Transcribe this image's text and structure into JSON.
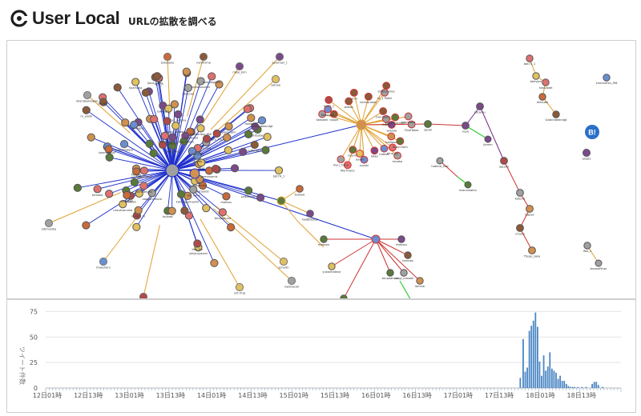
{
  "header": {
    "logo_text": "User Local",
    "title": "URLの拡散を調べる"
  },
  "graph": {
    "hubs": [
      {
        "name": "hub-main",
        "color": "#2a3bc4"
      },
      {
        "name": "hub-center",
        "color": "#e0a030"
      },
      {
        "name": "hub-right",
        "color": "#cc3333"
      },
      {
        "name": "hub-small",
        "color": "#cc3333"
      }
    ],
    "labels": [
      "bot74_1",
      "takivjeri",
      "hiroviolet",
      "ehtsube",
      "Gaskinbkendgt",
      "kinmaritsn_f96",
      "lfoo_n",
      "lsoonofiinor",
      "alzpts",
      "masoon",
      "yukaimakeur",
      "tomotonabin",
      "mokusu",
      "tomoko",
      "usagi_masaki",
      "lamxia",
      "tenpoatuve",
      "saruga",
      "tsukaw",
      "Gadjfotosyi",
      "kuk_hooma",
      "furo_hiro",
      "Sanfuujim",
      "mdogmo",
      "ykkytuyaomi",
      "amegiar",
      "jlone_hiroy",
      "satueldo",
      "m_yoshi",
      "tisa_kin",
      "nazukuanima",
      "twoxtagrem",
      "fumiqa",
      "kataragumaerik",
      "odakajei",
      "yamadeyan",
      "obyscan",
      "ooopsnomore",
      "futabeys",
      "sweetaa",
      "pomonomis",
      "Syamaka",
      "hdfimaba",
      "masa_k",
      "pakuhrshi",
      "Laur_tano",
      "skiff",
      "ssagavikir",
      "rokupadwen",
      "aki_nos",
      "kurofu_m",
      "dat_nana",
      "tatukabu",
      "nemfizme",
      "rinko_kim",
      "aeroman_t",
      "satusa",
      "Brandoekiopier",
      "stbmusika",
      "masaharu",
      "mamiye",
      "snt-ring",
      "sonydn",
      "Genbacoli",
      "FinalTotes",
      "MorTriano",
      "lokes",
      "stijtnoumier",
      "meu_frand",
      "kotomaka",
      "naojiri",
      "takaomi",
      "tanaka",
      "nozmu",
      "Kaneshrimem",
      "suzuki",
      "wisoda",
      "ayaki",
      "etuo_ay",
      "hamaso",
      "Suan-Hom",
      "wakaz",
      "r2_1 Pokhi",
      "katesu",
      "Ouruhkiko",
      "Shikaban",
      "ayaki_s",
      "Olowi",
      "kannanooni",
      "emil",
      "sjzuki",
      "reya",
      "kotarou",
      "agushi",
      "kotorin",
      "tojeya",
      "chozio",
      "Ttepe_saka",
      "jlamm",
      "hatena_hub",
      "brancetaiho"
    ],
    "bookmark_badge": "B!"
  },
  "chart_data": {
    "type": "bar",
    "title": "",
    "xlabel": "",
    "ylabel": "ツイート件数",
    "ylim": [
      0,
      80
    ],
    "yticks": [
      0,
      25,
      50,
      75
    ],
    "xticks": [
      "12日01時",
      "12日13時",
      "13日01時",
      "13日13時",
      "14日01時",
      "14日13時",
      "15日01時",
      "15日13時",
      "16日01時",
      "16日13時",
      "17日01時",
      "17日13時",
      "18日01時",
      "18日13時"
    ],
    "bar_color": "#4a86c4",
    "x_start": 0,
    "x_step": 1,
    "values": [
      0,
      0,
      0,
      0,
      0,
      0,
      0,
      0,
      0,
      0,
      0,
      0,
      0,
      0,
      0,
      0,
      0,
      0,
      0,
      0,
      0,
      0,
      0,
      0,
      0,
      0,
      0,
      0,
      0,
      0,
      0,
      0,
      0,
      0,
      0,
      0,
      0,
      0,
      0,
      0,
      0,
      0,
      0,
      0,
      0,
      0,
      0,
      0,
      0,
      0,
      0,
      0,
      0,
      0,
      0,
      0,
      0,
      0,
      0,
      0,
      0,
      0,
      0,
      0,
      0,
      0,
      0,
      0,
      0,
      0,
      0,
      0,
      0,
      0,
      0,
      0,
      0,
      0,
      0,
      0,
      0,
      0,
      0,
      0,
      0,
      0,
      0,
      0,
      0,
      0,
      0,
      0,
      0,
      0,
      0,
      0,
      0,
      0,
      0,
      0,
      0,
      0,
      0,
      0,
      0,
      0,
      0,
      0,
      0,
      0,
      0,
      0,
      0,
      0,
      0,
      0,
      0,
      0,
      0,
      0,
      0,
      0,
      0,
      0,
      0,
      0,
      0,
      0,
      0,
      0,
      0,
      0,
      0,
      0,
      0,
      0,
      0,
      0,
      0,
      0,
      0,
      0,
      0,
      0,
      0,
      0,
      0,
      0,
      0,
      0,
      0,
      0,
      0,
      0,
      0,
      0,
      0,
      0,
      0,
      0,
      0,
      0,
      0,
      0,
      0,
      0,
      0,
      0,
      0,
      0,
      0,
      0,
      0,
      0,
      0,
      0,
      0,
      0,
      0,
      0,
      0,
      0,
      0,
      0,
      0,
      0,
      0,
      0,
      0,
      0,
      0,
      0,
      0,
      0,
      0,
      0,
      0,
      0,
      0,
      0,
      0,
      0,
      0,
      0,
      0,
      0,
      0,
      0,
      0,
      0,
      0,
      0,
      0,
      0,
      0,
      0,
      0,
      0,
      0,
      0,
      0,
      0,
      0,
      0,
      0,
      0,
      0,
      0,
      0,
      0,
      0,
      0,
      0,
      0,
      0,
      0,
      0,
      0,
      0,
      0,
      0,
      0,
      0,
      0,
      0,
      0,
      0,
      0,
      0,
      0,
      0,
      0,
      0,
      0,
      0,
      0,
      0,
      0,
      0,
      0,
      0,
      0,
      0,
      0,
      0,
      0,
      0,
      0,
      0,
      0,
      0,
      0,
      0,
      0,
      0,
      0,
      0,
      0,
      0,
      0,
      0,
      0,
      0,
      0,
      0,
      0,
      0,
      0,
      0,
      0,
      0,
      0,
      0,
      0,
      0,
      0,
      0,
      0,
      0,
      0,
      0,
      0,
      0,
      0,
      0,
      0,
      0,
      0,
      0,
      0,
      0,
      0,
      0,
      0,
      0,
      0,
      0,
      0,
      0,
      0,
      0,
      0,
      0,
      0,
      0,
      0,
      0,
      0,
      0,
      0,
      0,
      0,
      0,
      0,
      0,
      0,
      0,
      0,
      0,
      0,
      0,
      0,
      0,
      0,
      0,
      0,
      0,
      0,
      0,
      0,
      0,
      0,
      0,
      0,
      0,
      0,
      0,
      0,
      0,
      0,
      0,
      0,
      0,
      0,
      0,
      0,
      0,
      0,
      0,
      0,
      0,
      0,
      0,
      0,
      0,
      0,
      0,
      0,
      0,
      0,
      0,
      0,
      0,
      0,
      0,
      0,
      0,
      0,
      0,
      0,
      0,
      0,
      0,
      0,
      0,
      0,
      0,
      0,
      0,
      0,
      0,
      0,
      0,
      0,
      0,
      0,
      0,
      0,
      0,
      0,
      0,
      0,
      0,
      0,
      0,
      0,
      0,
      0,
      0,
      0,
      0,
      0,
      0,
      0,
      0,
      0,
      0,
      0,
      0,
      0,
      0,
      0,
      0,
      0,
      0,
      0,
      0,
      0,
      0,
      0,
      0,
      0,
      0,
      0,
      0,
      0,
      0,
      0,
      0,
      0,
      0,
      0,
      0,
      0,
      0,
      0,
      0,
      0,
      0,
      0,
      0,
      0,
      0,
      0,
      0,
      0,
      0,
      0,
      0,
      0,
      0,
      0,
      0,
      0,
      0,
      0,
      0,
      0,
      0,
      0,
      0,
      0,
      0,
      0,
      0,
      0,
      0,
      0,
      0,
      0,
      0,
      0,
      0,
      0,
      0,
      0,
      0,
      0,
      0,
      0,
      0,
      0,
      0,
      0,
      0,
      0,
      0,
      0,
      0,
      0,
      0,
      0,
      0,
      0,
      0,
      0,
      0,
      0,
      0,
      0,
      0,
      0,
      0,
      0,
      0,
      0,
      0,
      0,
      0,
      0,
      0,
      0,
      0,
      0,
      0,
      0,
      0,
      0,
      0,
      0,
      0,
      0,
      0,
      0,
      0,
      0,
      0,
      0,
      0,
      0,
      0,
      0,
      0,
      0,
      0,
      0,
      0,
      0,
      0,
      0,
      0,
      0,
      0,
      0,
      0,
      0,
      0,
      0,
      0,
      0,
      0,
      0,
      0,
      0,
      0,
      0,
      0,
      0,
      0,
      0,
      0,
      0,
      0,
      0,
      0,
      0,
      0,
      0,
      0,
      0,
      0,
      0,
      0,
      0,
      0,
      0,
      0,
      0,
      0,
      0,
      0,
      0,
      0,
      0,
      0,
      0,
      0,
      0,
      0,
      0,
      0,
      0,
      0,
      0,
      0,
      0,
      0,
      0,
      0,
      0,
      0,
      0,
      0,
      0,
      0,
      0,
      0,
      0,
      0,
      0,
      0,
      0,
      0,
      0,
      0,
      0,
      0,
      0,
      0,
      0,
      0,
      0,
      0,
      0,
      0,
      0,
      0,
      0,
      0,
      0,
      0,
      0,
      0,
      0,
      0,
      0,
      0,
      0,
      0,
      0,
      0,
      0,
      0,
      0,
      0,
      0,
      0,
      0,
      0,
      0,
      0,
      0,
      0,
      0,
      0,
      0,
      0,
      0,
      0,
      0,
      0,
      0,
      0,
      0,
      0,
      0,
      0,
      0,
      0,
      0,
      0,
      0,
      0,
      0,
      0,
      0,
      0,
      0,
      0,
      0,
      0,
      0,
      0,
      0,
      0,
      0,
      0,
      0,
      0,
      0,
      0,
      0,
      0,
      0,
      0,
      0,
      0,
      0,
      0,
      0,
      0,
      0,
      0,
      0,
      0,
      0,
      0,
      0,
      0,
      0,
      0,
      0,
      0,
      0,
      0,
      0,
      0,
      0,
      0,
      0,
      0,
      0,
      0,
      0,
      0,
      0,
      0,
      0,
      0,
      0,
      0,
      0,
      0,
      0,
      0,
      0,
      0,
      0,
      0,
      0,
      0,
      0,
      0,
      0,
      0,
      0,
      0,
      0,
      0,
      0,
      0,
      0,
      0,
      0,
      0,
      0,
      0,
      0,
      0,
      0,
      0,
      0,
      0,
      0,
      0,
      0,
      0,
      0,
      0,
      0,
      0,
      0,
      0,
      0,
      0,
      0,
      0,
      0,
      0,
      0
    ],
    "peaks": [
      {
        "x": 11.55,
        "y": 10
      },
      {
        "x": 11.62,
        "y": 48
      },
      {
        "x": 11.67,
        "y": 16
      },
      {
        "x": 11.72,
        "y": 20
      },
      {
        "x": 11.77,
        "y": 56
      },
      {
        "x": 11.82,
        "y": 61
      },
      {
        "x": 11.87,
        "y": 66
      },
      {
        "x": 11.92,
        "y": 74
      },
      {
        "x": 11.97,
        "y": 60
      },
      {
        "x": 12.02,
        "y": 26
      },
      {
        "x": 12.07,
        "y": 12
      },
      {
        "x": 12.12,
        "y": 32
      },
      {
        "x": 12.17,
        "y": 17
      },
      {
        "x": 12.22,
        "y": 21
      },
      {
        "x": 12.27,
        "y": 35
      },
      {
        "x": 12.32,
        "y": 19
      },
      {
        "x": 12.37,
        "y": 17
      },
      {
        "x": 12.42,
        "y": 15
      },
      {
        "x": 12.47,
        "y": 9
      },
      {
        "x": 12.52,
        "y": 12
      },
      {
        "x": 12.57,
        "y": 7
      },
      {
        "x": 12.62,
        "y": 7
      },
      {
        "x": 12.67,
        "y": 4
      },
      {
        "x": 12.72,
        "y": 2
      },
      {
        "x": 12.77,
        "y": 1
      },
      {
        "x": 12.82,
        "y": 1
      },
      {
        "x": 12.87,
        "y": 1
      },
      {
        "x": 12.95,
        "y": 1
      },
      {
        "x": 13.05,
        "y": 1
      },
      {
        "x": 13.15,
        "y": 1
      },
      {
        "x": 13.3,
        "y": 4
      },
      {
        "x": 13.35,
        "y": 6
      },
      {
        "x": 13.4,
        "y": 6
      },
      {
        "x": 13.45,
        "y": 3
      },
      {
        "x": 13.55,
        "y": 1
      }
    ]
  }
}
